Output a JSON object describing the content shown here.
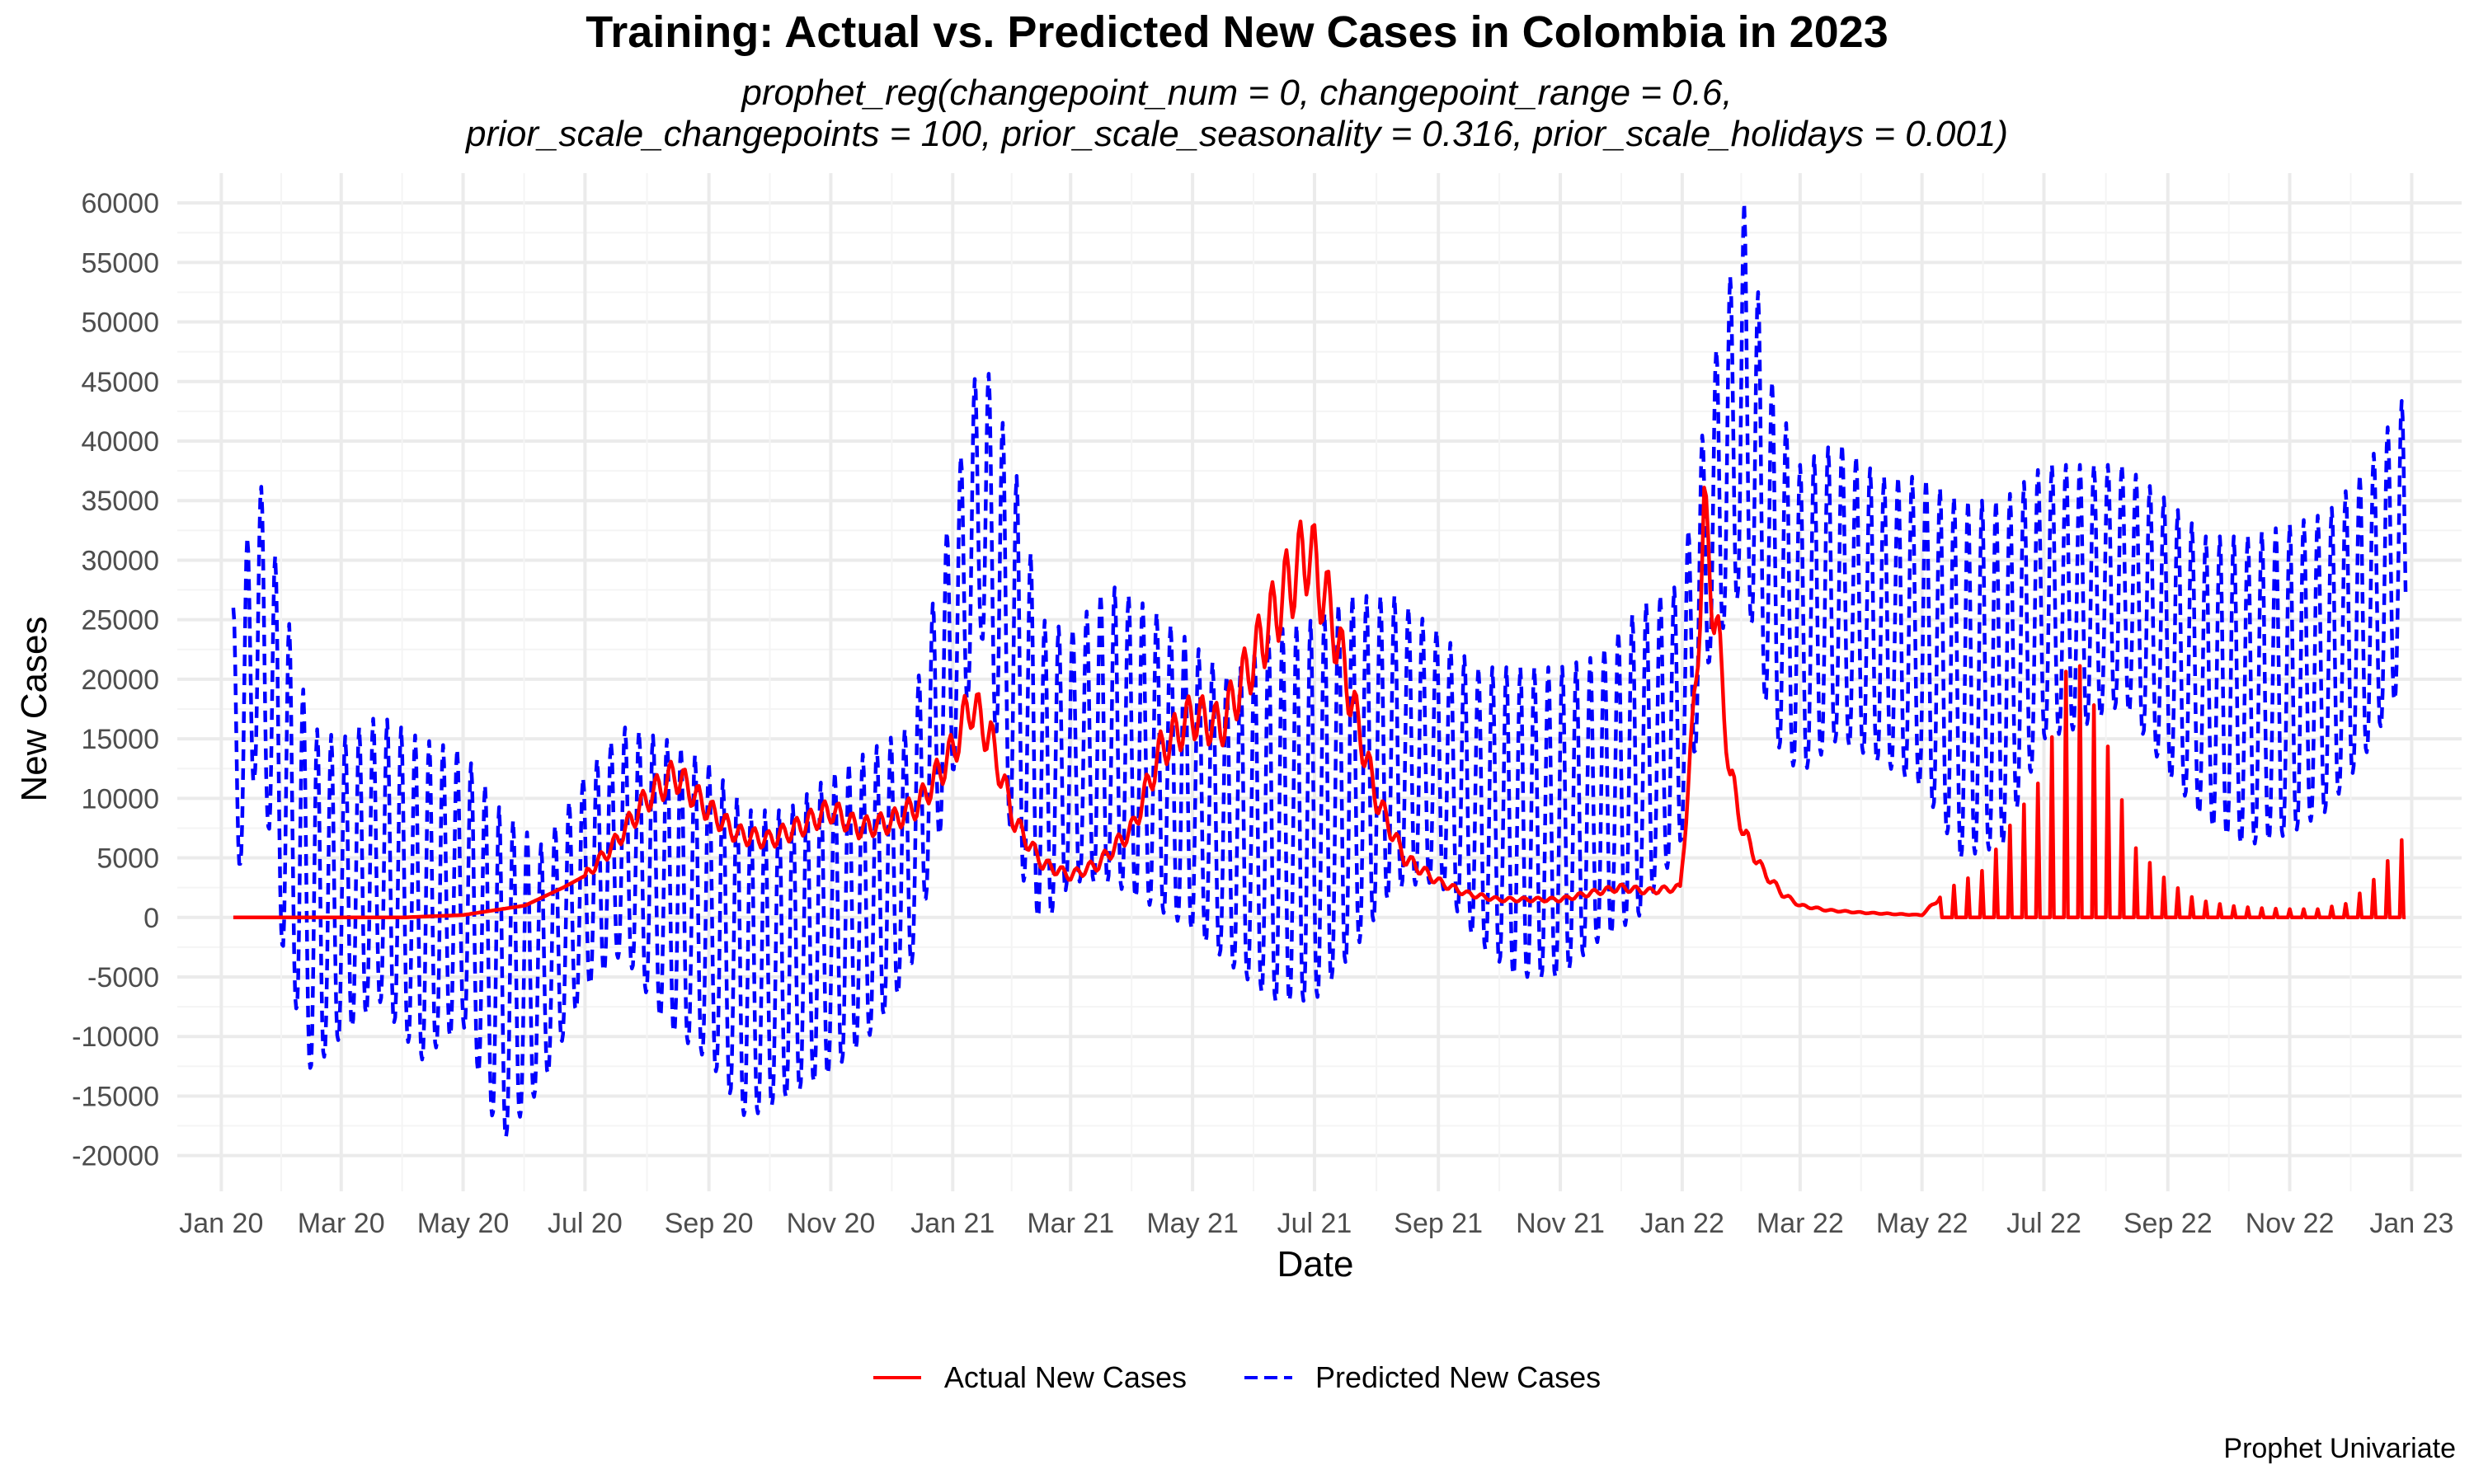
{
  "chart_data": {
    "type": "line",
    "title": "Training: Actual vs. Predicted New Cases in Colombia in 2023",
    "subtitle": [
      "prophet_reg(changepoint_num = 0, changepoint_range = 0.6,",
      "prior_scale_changepoints = 100, prior_scale_seasonality = 0.316, prior_scale_holidays = 0.001)"
    ],
    "xlabel": "Date",
    "ylabel": "New Cases",
    "caption": "Prophet Univariate",
    "x_ticks": [
      {
        "date": "2020-01-01",
        "label": "Jan 20"
      },
      {
        "date": "2020-03-01",
        "label": "Mar 20"
      },
      {
        "date": "2020-05-01",
        "label": "May 20"
      },
      {
        "date": "2020-07-01",
        "label": "Jul 20"
      },
      {
        "date": "2020-09-01",
        "label": "Sep 20"
      },
      {
        "date": "2020-11-01",
        "label": "Nov 20"
      },
      {
        "date": "2021-01-01",
        "label": "Jan 21"
      },
      {
        "date": "2021-03-01",
        "label": "Mar 21"
      },
      {
        "date": "2021-05-01",
        "label": "May 21"
      },
      {
        "date": "2021-07-01",
        "label": "Jul 21"
      },
      {
        "date": "2021-09-01",
        "label": "Sep 21"
      },
      {
        "date": "2021-11-01",
        "label": "Nov 21"
      },
      {
        "date": "2022-01-01",
        "label": "Jan 22"
      },
      {
        "date": "2022-03-01",
        "label": "Mar 22"
      },
      {
        "date": "2022-05-01",
        "label": "May 22"
      },
      {
        "date": "2022-07-01",
        "label": "Jul 22"
      },
      {
        "date": "2022-09-01",
        "label": "Sep 22"
      },
      {
        "date": "2022-11-01",
        "label": "Nov 22"
      },
      {
        "date": "2023-01-01",
        "label": "Jan 23"
      }
    ],
    "y_ticks": [
      -20000,
      -15000,
      -10000,
      -5000,
      0,
      5000,
      10000,
      15000,
      20000,
      25000,
      30000,
      35000,
      40000,
      45000,
      50000,
      55000,
      60000
    ],
    "xlim": [
      "2019-12-10",
      "2023-01-26"
    ],
    "ylim": [
      -23000,
      62500
    ],
    "grid": true,
    "legend_position": "bottom",
    "series": [
      {
        "name": "Actual New Cases",
        "color": "#ff0000",
        "line": "solid",
        "x": [
          "2020-01-07",
          "2020-02-15",
          "2020-04-01",
          "2020-05-01",
          "2020-06-01",
          "2020-06-20",
          "2020-07-01",
          "2020-07-15",
          "2020-08-01",
          "2020-08-15",
          "2020-09-01",
          "2020-09-15",
          "2020-10-01",
          "2020-10-15",
          "2020-11-01",
          "2020-11-15",
          "2020-12-01",
          "2020-12-15",
          "2021-01-01",
          "2021-01-10",
          "2021-01-20",
          "2021-02-01",
          "2021-02-15",
          "2021-03-01",
          "2021-03-15",
          "2021-04-01",
          "2021-04-15",
          "2021-05-01",
          "2021-05-15",
          "2021-06-01",
          "2021-06-15",
          "2021-06-28",
          "2021-07-10",
          "2021-07-20",
          "2021-08-01",
          "2021-08-15",
          "2021-09-01",
          "2021-09-15",
          "2021-10-01",
          "2021-10-15",
          "2021-11-01",
          "2021-11-15",
          "2021-12-01",
          "2021-12-15",
          "2021-12-31",
          "2022-01-06",
          "2022-01-12",
          "2022-01-18",
          "2022-01-25",
          "2022-02-01",
          "2022-02-10",
          "2022-02-20",
          "2022-03-01",
          "2022-03-15",
          "2022-04-01",
          "2022-04-15",
          "2022-05-01",
          "2022-05-15",
          "2022-06-01",
          "2022-06-15",
          "2022-07-01",
          "2022-07-15",
          "2022-08-01",
          "2022-08-15",
          "2022-09-01",
          "2022-09-15",
          "2022-10-01",
          "2022-10-15",
          "2022-11-01",
          "2022-11-15",
          "2022-12-01",
          "2022-12-15",
          "2022-12-29"
        ],
        "y": [
          0,
          0,
          0,
          200,
          1000,
          2500,
          3500,
          6000,
          10000,
          12000,
          9000,
          7000,
          6500,
          7500,
          9000,
          7500,
          8000,
          9500,
          14000,
          18000,
          15000,
          8000,
          4500,
          3500,
          4500,
          7500,
          14000,
          17000,
          16000,
          22000,
          27000,
          31000,
          25000,
          18000,
          10000,
          5000,
          3000,
          2000,
          1500,
          1500,
          1500,
          2000,
          2500,
          2200,
          2500,
          15000,
          33000,
          25000,
          12000,
          7000,
          4000,
          2000,
          1000,
          600,
          400,
          300,
          200,
          2500,
          4000,
          8000,
          12000,
          23000,
          15000,
          6000,
          3000,
          1500,
          1000,
          800,
          700,
          700,
          1200,
          3500,
          7000
        ]
      },
      {
        "name": "Predicted New Cases",
        "color": "#0000ff",
        "line": "dashed",
        "x": [
          "2020-01-07",
          "2020-01-20",
          "2020-02-01",
          "2020-02-15",
          "2020-03-01",
          "2020-03-20",
          "2020-04-10",
          "2020-05-01",
          "2020-05-20",
          "2020-06-10",
          "2020-07-01",
          "2020-07-20",
          "2020-08-10",
          "2020-09-01",
          "2020-09-20",
          "2020-10-10",
          "2020-11-01",
          "2020-11-20",
          "2020-12-10",
          "2021-01-01",
          "2021-01-15",
          "2021-02-01",
          "2021-02-15",
          "2021-03-01",
          "2021-03-20",
          "2021-04-10",
          "2021-05-01",
          "2021-05-20",
          "2021-06-10",
          "2021-07-01",
          "2021-07-20",
          "2021-08-10",
          "2021-09-01",
          "2021-09-20",
          "2021-10-10",
          "2021-11-01",
          "2021-11-20",
          "2021-12-10",
          "2021-12-31",
          "2022-01-15",
          "2022-02-01",
          "2022-02-15",
          "2022-03-01",
          "2022-03-20",
          "2022-04-10",
          "2022-05-01",
          "2022-05-20",
          "2022-06-10",
          "2022-07-01",
          "2022-07-20",
          "2022-08-10",
          "2022-09-01",
          "2022-09-20",
          "2022-10-10",
          "2022-11-01",
          "2022-11-20",
          "2022-12-10",
          "2022-12-29"
        ],
        "y_upper": [
          26000,
          37000,
          27000,
          16000,
          15000,
          17000,
          15000,
          14000,
          9000,
          6000,
          12000,
          16000,
          15000,
          13000,
          9000,
          9000,
          12000,
          14000,
          16000,
          35000,
          48000,
          38000,
          25000,
          24000,
          28000,
          26000,
          23000,
          20000,
          24000,
          25000,
          27000,
          27000,
          24000,
          21000,
          21000,
          21000,
          22000,
          26000,
          28000,
          45000,
          60000,
          45000,
          38000,
          40000,
          37000,
          37000,
          35000,
          35000,
          38000,
          38000,
          38000,
          35000,
          32000,
          32000,
          33000,
          34000,
          38000,
          44000
        ],
        "y_lower": [
          1000,
          14000,
          -3000,
          -13000,
          -10000,
          -7000,
          -12000,
          -9000,
          -19000,
          -14000,
          -6000,
          -3000,
          -9000,
          -12000,
          -17000,
          -15000,
          -13000,
          -10000,
          -5000,
          12000,
          24000,
          5000,
          -1000,
          3000,
          3000,
          1000,
          -1000,
          -4000,
          -7000,
          -7000,
          -3000,
          2500,
          3000,
          -2000,
          -5000,
          -5000,
          -2000,
          0,
          6000,
          22000,
          28000,
          15000,
          12000,
          15000,
          13000,
          11000,
          5000,
          6000,
          15000,
          16000,
          18000,
          12000,
          8000,
          6000,
          7000,
          9000,
          14000,
          20000
        ],
        "weekly_period_days": 7
      }
    ]
  }
}
